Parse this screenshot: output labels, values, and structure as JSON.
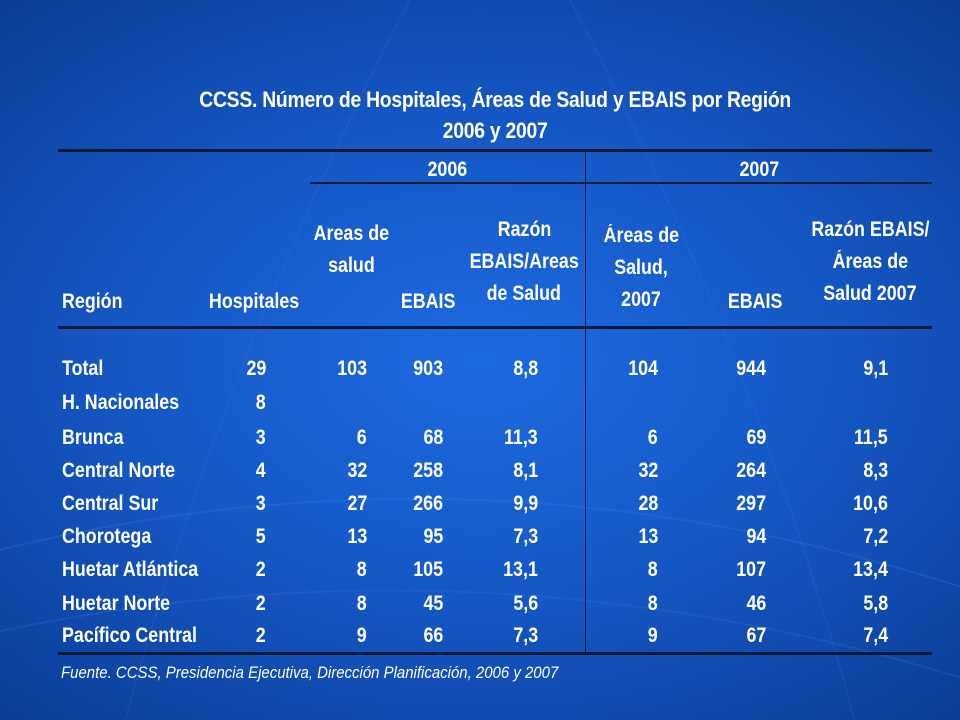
{
  "title": {
    "line1": "CCSS. Número de Hospitales, Áreas de Salud y EBAIS por Región",
    "line2": "2006 y 2007"
  },
  "year_headers": {
    "y2006": "2006",
    "y2007": "2007"
  },
  "column_headers": {
    "region": "Región",
    "hospitales": "Hospitales",
    "areas_2006": [
      "Areas de",
      "salud"
    ],
    "ebais_2006": "EBAIS",
    "razon_2006": [
      "Razón",
      "EBAIS/Areas",
      "de Salud"
    ],
    "areas_2007": [
      "Áreas de",
      "Salud, 2007"
    ],
    "ebais_2007": "EBAIS",
    "razon_2007": [
      "Razón EBAIS/",
      "Áreas de",
      "Salud 2007"
    ]
  },
  "rows": [
    {
      "region": "Total",
      "hospitales": "29",
      "areas_2006": "103",
      "ebais_2006": "903",
      "razon_2006": "8,8",
      "areas_2007": "104",
      "ebais_2007": "944",
      "razon_2007": "9,1"
    },
    {
      "region": "H. Nacionales",
      "hospitales": "8",
      "areas_2006": "",
      "ebais_2006": "",
      "razon_2006": "",
      "areas_2007": "",
      "ebais_2007": "",
      "razon_2007": ""
    },
    {
      "region": "Brunca",
      "hospitales": "3",
      "areas_2006": "6",
      "ebais_2006": "68",
      "razon_2006": "11,3",
      "areas_2007": "6",
      "ebais_2007": "69",
      "razon_2007": "11,5"
    },
    {
      "region": "Central Norte",
      "hospitales": "4",
      "areas_2006": "32",
      "ebais_2006": "258",
      "razon_2006": "8,1",
      "areas_2007": "32",
      "ebais_2007": "264",
      "razon_2007": "8,3"
    },
    {
      "region": "Central Sur",
      "hospitales": "3",
      "areas_2006": "27",
      "ebais_2006": "266",
      "razon_2006": "9,9",
      "areas_2007": "28",
      "ebais_2007": "297",
      "razon_2007": "10,6"
    },
    {
      "region": "Chorotega",
      "hospitales": "5",
      "areas_2006": "13",
      "ebais_2006": "95",
      "razon_2006": "7,3",
      "areas_2007": "13",
      "ebais_2007": "94",
      "razon_2007": "7,2"
    },
    {
      "region": "Huetar Atlántica",
      "hospitales": "2",
      "areas_2006": "8",
      "ebais_2006": "105",
      "razon_2006": "13,1",
      "areas_2007": "8",
      "ebais_2007": "107",
      "razon_2007": "13,4"
    },
    {
      "region": "Huetar Norte",
      "hospitales": "2",
      "areas_2006": "8",
      "ebais_2006": "45",
      "razon_2006": "5,6",
      "areas_2007": "8",
      "ebais_2007": "46",
      "razon_2007": "5,8"
    },
    {
      "region": "Pacífico Central",
      "hospitales": "2",
      "areas_2006": "9",
      "ebais_2006": "66",
      "razon_2006": "7,3",
      "areas_2007": "9",
      "ebais_2007": "67",
      "razon_2007": "7,4"
    }
  ],
  "footer": "Fuente. CCSS, Presidencia Ejecutiva, Dirección Planificación, 2006 y 2007",
  "colors": {
    "background": "#1557c4",
    "text": "#ffffff",
    "rules": "#0a1a35"
  }
}
